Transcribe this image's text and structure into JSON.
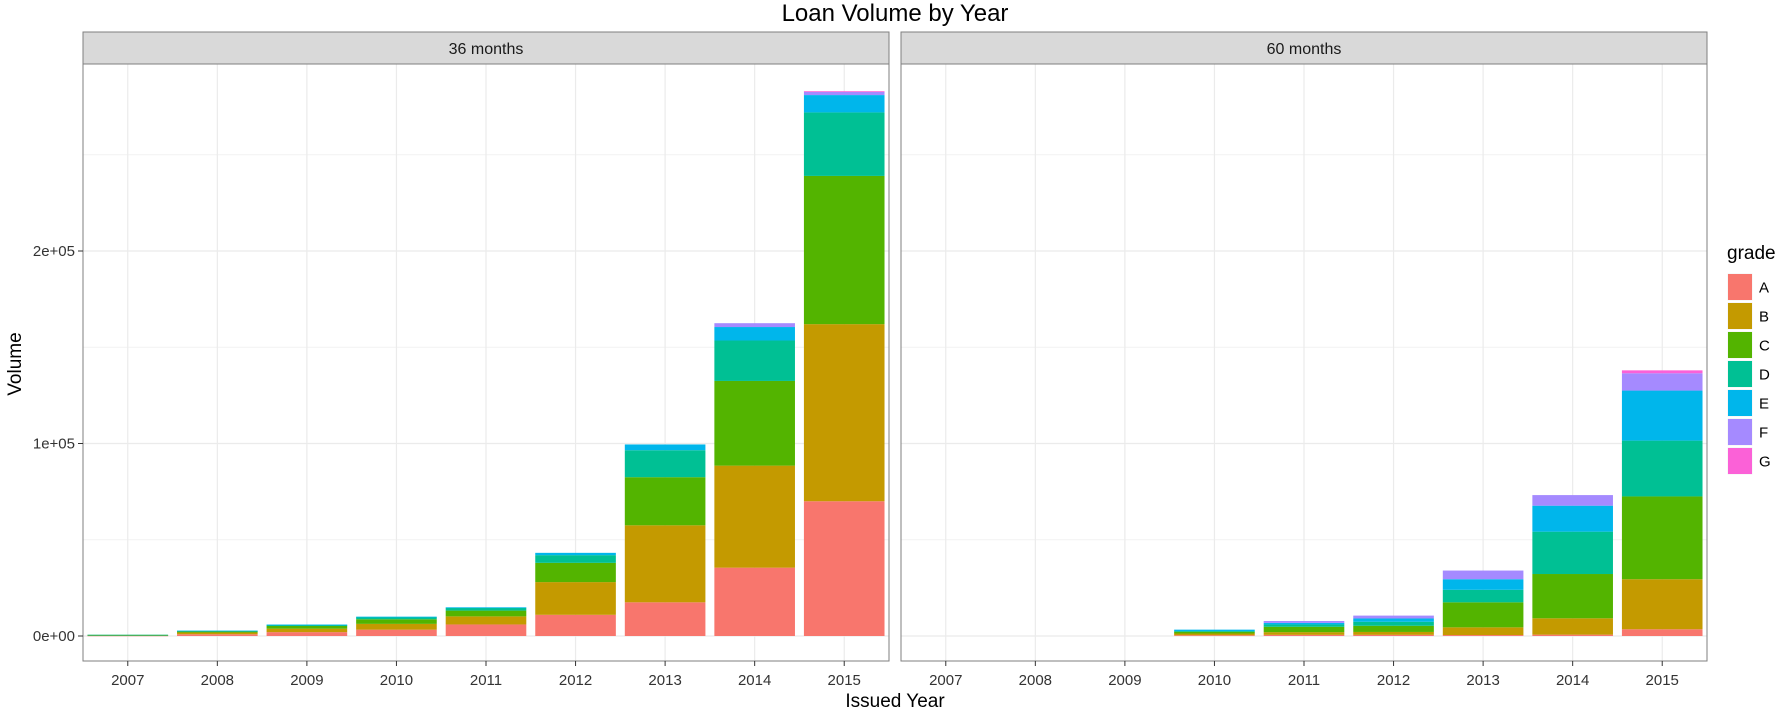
{
  "chart_data": {
    "type": "bar",
    "stacked": true,
    "title": "Loan Volume by Year",
    "xlabel": "Issued Year",
    "ylabel": "Volume",
    "ylim": [
      0,
      295000
    ],
    "yticks": [
      0,
      100000,
      200000
    ],
    "ytick_labels": [
      "0e+00",
      "1e+05",
      "2e+05"
    ],
    "categories": [
      "2007",
      "2008",
      "2009",
      "2010",
      "2011",
      "2012",
      "2013",
      "2014",
      "2015"
    ],
    "legend": {
      "title": "grade",
      "position": "right"
    },
    "grid": true,
    "series_colors": {
      "A": "#F8766D",
      "B": "#C49A00",
      "C": "#53B400",
      "D": "#00C094",
      "E": "#00B6EB",
      "F": "#A58AFF",
      "G": "#FB61D7"
    },
    "facets": [
      {
        "label": "36 months",
        "series": [
          {
            "name": "A",
            "values": [
              300,
              900,
              2000,
              3300,
              6000,
              11000,
              17500,
              35500,
              70000
            ]
          },
          {
            "name": "B",
            "values": [
              200,
              900,
              1800,
              3000,
              4200,
              17000,
              40000,
              53000,
              92000
            ]
          },
          {
            "name": "C",
            "values": [
              100,
              600,
              1400,
              2400,
              3000,
              10000,
              25000,
              44000,
              77000
            ]
          },
          {
            "name": "D",
            "values": [
              50,
              300,
              600,
              1100,
              1400,
              4000,
              14000,
              21000,
              33000
            ]
          },
          {
            "name": "E",
            "values": [
              0,
              100,
              150,
              250,
              300,
              1200,
              3000,
              7000,
              9000
            ]
          },
          {
            "name": "F",
            "values": [
              0,
              0,
              0,
              0,
              0,
              0,
              0,
              2000,
              1600
            ]
          },
          {
            "name": "G",
            "values": [
              0,
              0,
              0,
              0,
              0,
              0,
              0,
              0,
              400
            ]
          }
        ]
      },
      {
        "label": "60 months",
        "series": [
          {
            "name": "A",
            "values": [
              0,
              0,
              0,
              400,
              600,
              600,
              500,
              700,
              3500
            ]
          },
          {
            "name": "B",
            "values": [
              0,
              0,
              0,
              900,
              1400,
              1500,
              4000,
              8500,
              26000
            ]
          },
          {
            "name": "C",
            "values": [
              0,
              0,
              0,
              900,
              2800,
              3200,
              13000,
              23000,
              43000
            ]
          },
          {
            "name": "D",
            "values": [
              0,
              0,
              0,
              400,
              1200,
              2100,
              6500,
              22000,
              29000
            ]
          },
          {
            "name": "E",
            "values": [
              0,
              0,
              0,
              700,
              800,
              1700,
              5500,
              13500,
              26000
            ]
          },
          {
            "name": "F",
            "values": [
              0,
              0,
              0,
              0,
              1000,
              1500,
              4500,
              5500,
              9000
            ]
          },
          {
            "name": "G",
            "values": [
              0,
              0,
              0,
              0,
              0,
              0,
              0,
              0,
              1500
            ]
          }
        ]
      }
    ]
  }
}
